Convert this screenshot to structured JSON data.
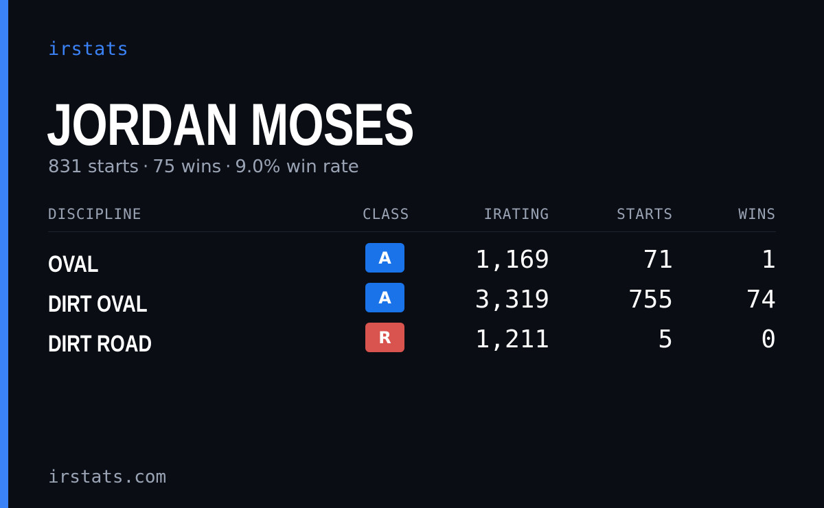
{
  "brand": "irstats",
  "player": {
    "name": "JORDAN MOSES",
    "starts_text": "831 starts",
    "wins_text": "75 wins",
    "win_rate_text": "9.0% win rate",
    "separator": "·"
  },
  "table": {
    "headers": {
      "discipline": "DISCIPLINE",
      "class": "CLASS",
      "irating": "IRATING",
      "starts": "STARTS",
      "wins": "WINS"
    },
    "rows": [
      {
        "discipline": "OVAL",
        "class": "A",
        "class_color": "#1a73e8",
        "irating": "1,169",
        "starts": "71",
        "wins": "1"
      },
      {
        "discipline": "DIRT OVAL",
        "class": "A",
        "class_color": "#1a73e8",
        "irating": "3,319",
        "starts": "755",
        "wins": "74"
      },
      {
        "discipline": "DIRT ROAD",
        "class": "R",
        "class_color": "#d9534f",
        "irating": "1,211",
        "starts": "5",
        "wins": "0"
      }
    ]
  },
  "footer": "irstats.com",
  "colors": {
    "background": "#0a0d14",
    "accent": "#3b82f6",
    "muted": "#9aa4b5"
  }
}
